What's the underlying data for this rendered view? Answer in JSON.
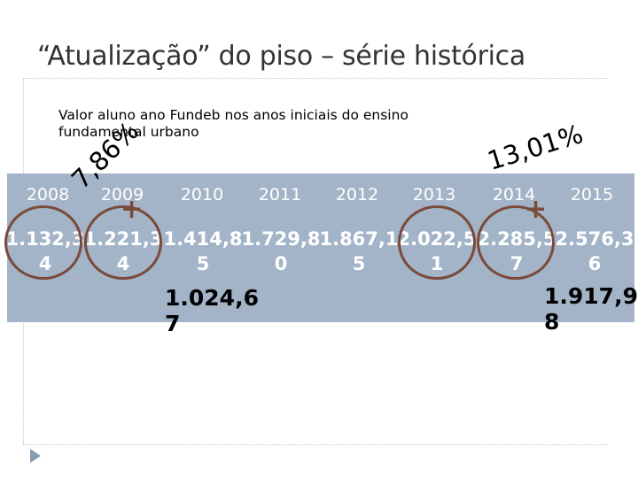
{
  "slide": {
    "title": "“Atualização” do piso – série histórica",
    "subtitle": "Valor aluno ano Fundeb nos anos iniciais do ensino fundamental urbano"
  },
  "years": [
    "2008",
    "2009",
    "2010",
    "2011",
    "2012",
    "2013",
    "2014",
    "2015"
  ],
  "values": [
    "1.132,3\n4",
    "1.221,3\n4",
    "1.414,8\n5",
    "1.729,8\n0",
    "1.867,1\n5",
    "2.022,5\n1",
    "2.285,5\n7",
    "2.576,3\n6"
  ],
  "annotations": {
    "left_percent": "7,86%",
    "right_percent": "13,01%",
    "left_value": "1.024,6\n7",
    "right_value": "1.917,9\n8",
    "plus_sign": "+",
    "ring_color": "#7a4a3a"
  },
  "colors": {
    "band": "#a3b4c8",
    "year_text": "#ffffff",
    "title": "#333333"
  }
}
